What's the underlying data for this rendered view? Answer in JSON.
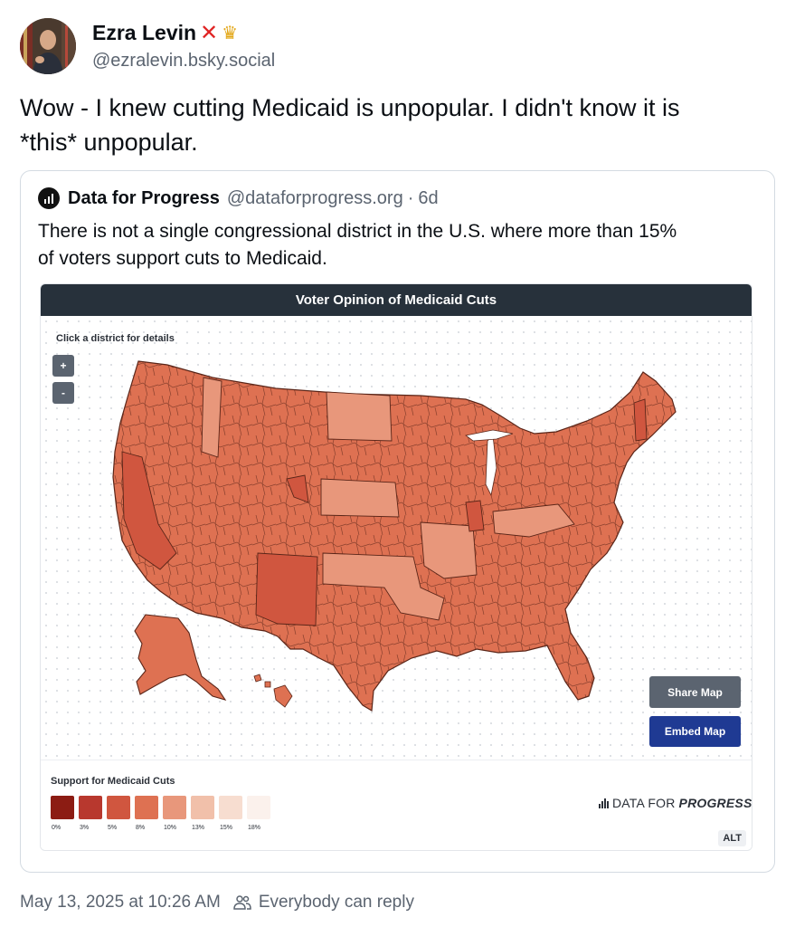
{
  "author": {
    "display_name": "Ezra Levin",
    "badge_icons": [
      "x-mark-icon",
      "crown-icon"
    ],
    "handle": "@ezralevin.bsky.social"
  },
  "post": {
    "text_line1": "Wow - I knew cutting Medicaid is unpopular. I didn't know it is",
    "text_line2": "*this* unpopular."
  },
  "quote": {
    "name": "Data for Progress",
    "handle": "@dataforprogress.org",
    "separator": "·",
    "time": "6d",
    "text_line1": "There is not a single congressional district in the U.S. where more than 15%",
    "text_line2": "of voters support cuts to Medicaid."
  },
  "embed": {
    "title": "Voter Opinion of Medicaid Cuts",
    "hint": "Click a district for details",
    "zoom_in": "+",
    "zoom_out": "-",
    "share_label": "Share Map",
    "embed_label": "Embed Map",
    "legend_title": "Support for Medicaid Cuts",
    "legend": [
      {
        "label": "0%",
        "color": "#8c1c13"
      },
      {
        "label": "3%",
        "color": "#b8382e"
      },
      {
        "label": "5%",
        "color": "#d0563f"
      },
      {
        "label": "8%",
        "color": "#de7152"
      },
      {
        "label": "10%",
        "color": "#e8977b"
      },
      {
        "label": "13%",
        "color": "#f1c0aa"
      },
      {
        "label": "15%",
        "color": "#f7ddd0"
      },
      {
        "label": "18%",
        "color": "#fbf1ec"
      }
    ],
    "brand_regular": "DATA FOR",
    "brand_bold": "PROGRESS",
    "alt_label": "ALT"
  },
  "footer": {
    "timestamp": "May 13, 2025 at 10:26 AM",
    "reply_setting": "Everybody can reply"
  },
  "colors": {
    "map_main": "#de7152",
    "map_light": "#e8977b",
    "map_dark": "#d0563f",
    "map_stroke": "#5a2518",
    "embed_button": "#1f3a93",
    "share_button": "#5b6470"
  }
}
